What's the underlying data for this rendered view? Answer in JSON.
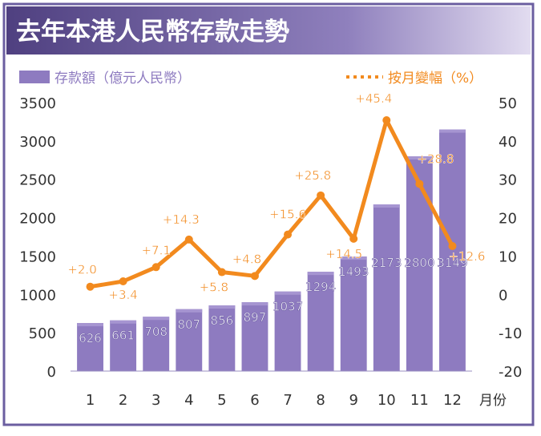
{
  "title": "去年本港人民幣存款走勢",
  "legend": {
    "bar_label": "存款額（億元人民幣）",
    "line_label": "按月變幅（%）"
  },
  "colors": {
    "bar": "#8e7bc0",
    "bar_top": "#a695d1",
    "line": "#f28a1e",
    "title_bg_dark": "#5a4a8a",
    "title_bg_light": "#c9bfe2",
    "axis_text": "#333333",
    "frame": "#6b5ea0"
  },
  "chart_data": {
    "type": "bar",
    "categories": [
      "1",
      "2",
      "3",
      "4",
      "5",
      "6",
      "7",
      "8",
      "9",
      "10",
      "11",
      "12"
    ],
    "x_suffix": "月份",
    "series": [
      {
        "name": "存款額（億元人民幣）",
        "type": "bar",
        "axis": "left",
        "values": [
          626,
          661,
          708,
          807,
          856,
          897,
          1037,
          1294,
          1493,
          2173,
          2800,
          3149
        ],
        "labels": [
          "626",
          "661",
          "708",
          "807",
          "856",
          "897",
          "1037",
          "1294",
          "1493",
          "2173",
          "2800",
          "3149"
        ]
      },
      {
        "name": "按月變幅（%）",
        "type": "line",
        "axis": "right",
        "values": [
          2.0,
          3.4,
          7.1,
          14.3,
          5.8,
          4.8,
          15.6,
          25.8,
          14.5,
          45.4,
          28.8,
          12.6
        ],
        "labels": [
          "+2.0",
          "+3.4",
          "+7.1",
          "+14.3",
          "+5.8",
          "+4.8",
          "+15.6",
          "+25.8",
          "+14.5",
          "+45.4",
          "+28.8",
          "+12.6"
        ]
      }
    ],
    "y_left": {
      "min": 0,
      "max": 3500,
      "ticks": [
        "0",
        "500",
        "1000",
        "1500",
        "2000",
        "2500",
        "3000",
        "3500"
      ]
    },
    "y_right": {
      "min": -20,
      "max": 50,
      "ticks": [
        "-20",
        "-10",
        "0",
        "10",
        "20",
        "30",
        "40",
        "50"
      ]
    },
    "grid": false,
    "legend_position": "top"
  }
}
